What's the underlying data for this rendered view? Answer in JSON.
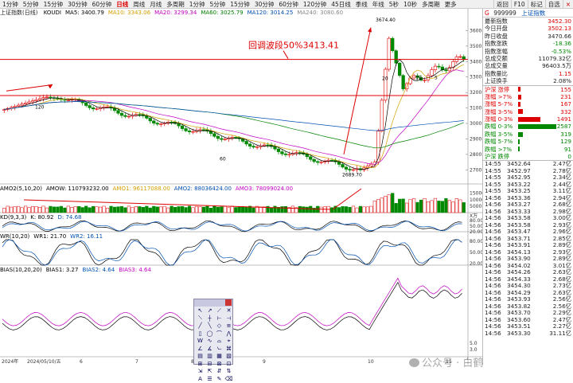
{
  "toolbar": {
    "periods": [
      "1分钟",
      "5分钟",
      "15分钟",
      "30分钟",
      "60分钟",
      "日线",
      "周线",
      "月线",
      "多周期",
      "1分钟",
      "5分钟",
      "15分钟",
      "30分钟",
      "60分钟",
      "120分钟",
      "45日线",
      "季线",
      "年线",
      "5秒",
      "10秒",
      "多周期",
      "更多"
    ],
    "active_index": 5,
    "right": [
      "返回",
      "F10",
      "标记",
      "自选"
    ],
    "close": "×"
  },
  "main": {
    "header_prefix": "上证指数(日线)",
    "header_items": [
      {
        "text": "KOUDI",
        "color": "#000"
      },
      {
        "text": "MA5: 3400.79",
        "color": "#000"
      },
      {
        "text": "MA10: 3343.06",
        "color": "#d4a000"
      },
      {
        "text": "MA20: 3299.34",
        "color": "#c000c0"
      },
      {
        "text": "MA60: 3025.79",
        "color": "#008000"
      },
      {
        "text": "MA120: 3014.25",
        "color": "#0050b0"
      },
      {
        "text": "MA240: 3080.60",
        "color": "#888"
      }
    ],
    "annotation": "回调波段50%3413.41",
    "high_label": "3674.40",
    "low_label": "2689.70",
    "left_low_label": "120",
    "mid_label": "60",
    "marks": [
      "20",
      "10",
      "5"
    ],
    "y_axis": [
      "3600",
      "3500",
      "3400",
      "3300",
      "3200",
      "3100",
      "3000",
      "2900",
      "2800",
      "2700"
    ]
  },
  "volume": {
    "header_items": [
      {
        "text": "AMO2(5,10,20)",
        "color": "#000"
      },
      {
        "text": "AMOW: 110793232.00",
        "color": "#000"
      },
      {
        "text": "AMO1: 96117088.00",
        "color": "#d4a000"
      },
      {
        "text": "AMO2: 88036424.00",
        "color": "#0050b0"
      },
      {
        "text": "AMO3: 78099024.00",
        "color": "#c000c0"
      }
    ],
    "y_axis": [
      "15000",
      "10000",
      "5000"
    ],
    "unit": "X万"
  },
  "kdj": {
    "header_items": [
      {
        "text": "KD(9,3,3)",
        "color": "#000"
      },
      {
        "text": "K: 80.92",
        "color": "#000"
      },
      {
        "text": "D: 74.68",
        "color": "#0050b0"
      }
    ],
    "y_axis": [
      "80.00",
      "50.00",
      "20.00"
    ]
  },
  "wr": {
    "header_items": [
      {
        "text": "WR(10,20)",
        "color": "#000"
      },
      {
        "text": "WR1: 21.70",
        "color": "#000"
      },
      {
        "text": "WR2: 16.11",
        "color": "#0050b0"
      }
    ],
    "y_axis": [
      "80.00",
      "50.00",
      "20.00"
    ]
  },
  "bias": {
    "header_items": [
      {
        "text": "BIAS(10,20,20)",
        "color": "#000"
      },
      {
        "text": "BIAS1: 3.27",
        "color": "#000"
      },
      {
        "text": "BIAS2: 4.64",
        "color": "#0050b0"
      },
      {
        "text": "BIAS3: 4.64",
        "color": "#c000c0"
      }
    ],
    "y_axis": [
      "5.0",
      "3.0"
    ]
  },
  "x_axis": [
    "2024年",
    "2024/05/10/五",
    "6",
    "7",
    "8",
    "9",
    "10",
    "11"
  ],
  "side": {
    "g": "G",
    "code": "999999",
    "name": "上证指数",
    "quote": [
      {
        "label": "最新指数",
        "value": "3452.30",
        "color": "up"
      },
      {
        "label": "今日开盘",
        "value": "3502.13",
        "color": "up"
      },
      {
        "label": "昨日收盘",
        "value": "3470.66",
        "color": ""
      },
      {
        "label": "指数涨跌",
        "value": "-18.36",
        "color": "down"
      },
      {
        "label": "指数涨幅",
        "value": "-0.53%",
        "color": "down"
      },
      {
        "label": "总成交额",
        "value": "11079.32亿",
        "color": ""
      },
      {
        "label": "总成交量",
        "value": "96403.5万",
        "color": ""
      },
      {
        "label": "指数量比",
        "value": "1.15",
        "color": "up"
      },
      {
        "label": "上证换手",
        "value": "2.08%",
        "color": ""
      }
    ],
    "breadth": [
      {
        "label": "沪深 涨停",
        "value": "155",
        "color": "#d00",
        "fill": 0.06
      },
      {
        "label": "涨幅 >7%",
        "value": "231",
        "color": "#d00",
        "fill": 0.09
      },
      {
        "label": "涨幅 5-7%",
        "value": "167",
        "color": "#d00",
        "fill": 0.07
      },
      {
        "label": "涨幅 3-5%",
        "value": "332",
        "color": "#d00",
        "fill": 0.13
      },
      {
        "label": "涨幅 0-3%",
        "value": "1491",
        "color": "#d00",
        "fill": 0.58
      },
      {
        "label": "跌幅 0-3%",
        "value": "2587",
        "color": "#080",
        "fill": 1.0
      },
      {
        "label": "跌幅 3-5%",
        "value": "319",
        "color": "#080",
        "fill": 0.12
      },
      {
        "label": "跌幅 5-7%",
        "value": "129",
        "color": "#080",
        "fill": 0.05
      },
      {
        "label": "跌幅 >7%",
        "value": "91",
        "color": "#080",
        "fill": 0.04
      },
      {
        "label": "沪深 跌停",
        "value": "0",
        "color": "#080",
        "fill": 0.0
      }
    ],
    "ticks": [
      {
        "t": "14:55",
        "p": "3452.64",
        "v": "2.47亿"
      },
      {
        "t": "14:55",
        "p": "3452.97",
        "v": "2.78亿"
      },
      {
        "t": "14:55",
        "p": "3452.95",
        "v": "2.34亿"
      },
      {
        "t": "14:55",
        "p": "3453.22",
        "v": "2.44亿"
      },
      {
        "t": "14:55",
        "p": "3453.25",
        "v": "3.11亿"
      },
      {
        "t": "14:56",
        "p": "3453.36",
        "v": "2.94亿"
      },
      {
        "t": "14:56",
        "p": "3453.27",
        "v": "2.68亿"
      },
      {
        "t": "14:56",
        "p": "3453.33",
        "v": "2.98亿"
      },
      {
        "t": "14:56",
        "p": "3453.58",
        "v": "3.00亿"
      },
      {
        "t": "14:56",
        "p": "3453.58",
        "v": "2.93亿"
      },
      {
        "t": "14:56",
        "p": "3453.47",
        "v": "2.96亿"
      },
      {
        "t": "14:56",
        "p": "3453.71",
        "v": "2.85亿"
      },
      {
        "t": "14:56",
        "p": "3453.91",
        "v": "2.89亿"
      },
      {
        "t": "14:56",
        "p": "3454.13",
        "v": "2.93亿"
      },
      {
        "t": "14:56",
        "p": "3453.90",
        "v": "2.89亿"
      },
      {
        "t": "14:56",
        "p": "3454.02",
        "v": "3.01亿"
      },
      {
        "t": "14:56",
        "p": "3454.26",
        "v": "2.63亿"
      },
      {
        "t": "14:56",
        "p": "3454.33",
        "v": "2.68亿"
      },
      {
        "t": "14:56",
        "p": "3454.30",
        "v": "2.73亿"
      },
      {
        "t": "14:56",
        "p": "3454.29",
        "v": "2.63亿"
      },
      {
        "t": "14:56",
        "p": "3453.93",
        "v": "2.56亿"
      },
      {
        "t": "14:56",
        "p": "3453.82",
        "v": "2.56亿"
      },
      {
        "t": "14:56",
        "p": "3453.70",
        "v": "2.29亿"
      },
      {
        "t": "14:56",
        "p": "3453.60",
        "v": "2.47亿"
      },
      {
        "t": "14:56",
        "p": "3453.51",
        "v": "2.27亿"
      },
      {
        "t": "14:56",
        "p": "3453.30",
        "v": "31.11亿"
      }
    ]
  },
  "palette": {
    "tools": [
      "↖",
      "↗",
      "⟋",
      "✕",
      "⟍",
      "┼",
      "⊢",
      "⊣",
      "╱",
      "╲",
      "◇",
      "≡",
      "▯",
      "◯",
      "⌒",
      "⋀",
      "W",
      "∿",
      "⌓",
      "⌖",
      "∠",
      "∡",
      "⦦",
      "⌘",
      "▤",
      "▥",
      "▦",
      "▧",
      "⊞",
      "⊟",
      "⊠",
      "⊡",
      "⇲",
      "⇱",
      "⇵",
      "⇅",
      "A",
      "☰",
      "✎",
      "⌫"
    ]
  },
  "watermark": "公众号 · 白鹤"
}
